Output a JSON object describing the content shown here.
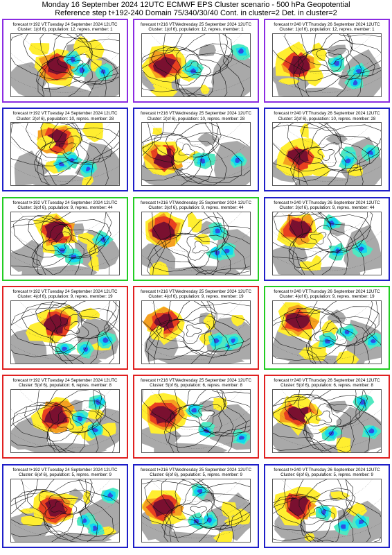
{
  "header": {
    "line1": "Monday 16 September 2024 12UTC ECMWF EPS Cluster scenario - 500 hPa Geopotential",
    "line2": "Reference step t+192-240 Domain 75/340/30/40 Cont. in cluster=2 Det. in cluster=2"
  },
  "colors": {
    "violet": "#8a2be2",
    "blue": "#1e1ec8",
    "green": "#22cc22",
    "red": "#e02020",
    "land": "#a9a9a9",
    "sea": "#ffffff",
    "anomaly_pos_strong": "#7a1030",
    "anomaly_pos_mid": "#e84020",
    "anomaly_pos_weak": "#f5a020",
    "anomaly_pos_faint": "#ffee30",
    "anomaly_neg_weak": "#50e8c0",
    "anomaly_neg_mid": "#10d8f0",
    "anomaly_neg_strong": "#3050e0"
  },
  "clusters": [
    {
      "id": 1,
      "panels": [
        {
          "border": "violet",
          "line1": "forecast t+192 VT:Tuesday 24 September 2024 12UTC",
          "line2": "Cluster: 1(of 6), population: 12, repres. member: 1"
        },
        {
          "border": "violet",
          "line1": "forecast t+216 VT:Wednesday 25 September 2024 12UTC",
          "line2": "Cluster: 1(of 6), population: 12, repres. member: 1"
        },
        {
          "border": "violet",
          "line1": "forecast t+240 VT:Thursday 26 September 2024 12UTC",
          "line2": "Cluster: 1(of 6), population: 12, repres. member: 1"
        }
      ]
    },
    {
      "id": 2,
      "panels": [
        {
          "border": "blue",
          "line1": "forecast t+192 VT:Tuesday 24 September 2024 12UTC",
          "line2": "Cluster: 2(of 6), population: 10, repres. member: 28"
        },
        {
          "border": "blue",
          "line1": "forecast t+216 VT:Wednesday 25 September 2024 12UTC",
          "line2": "Cluster: 2(of 6), population: 10, repres. member: 28"
        },
        {
          "border": "blue",
          "line1": "forecast t+240 VT:Thursday 26 September 2024 12UTC",
          "line2": "Cluster: 2(of 6), population: 10, repres. member: 28"
        }
      ]
    },
    {
      "id": 3,
      "panels": [
        {
          "border": "green",
          "line1": "forecast t+192 VT:Tuesday 24 September 2024 12UTC",
          "line2": "Cluster: 3(of 6), population: 9, repres. member: 44"
        },
        {
          "border": "green",
          "line1": "forecast t+216 VT:Wednesday 25 September 2024 12UTC",
          "line2": "Cluster: 3(of 6), population: 9, repres. member: 44"
        },
        {
          "border": "blue",
          "line1": "forecast t+240 VT:Thursday 26 September 2024 12UTC",
          "line2": "Cluster: 3(of 6), population: 9, repres. member: 44"
        }
      ]
    },
    {
      "id": 4,
      "panels": [
        {
          "border": "red",
          "line1": "forecast t+192 VT:Tuesday 24 September 2024 12UTC",
          "line2": "Cluster: 4(of 6), population: 9, repres. member: 19"
        },
        {
          "border": "red",
          "line1": "forecast t+216 VT:Wednesday 25 September 2024 12UTC",
          "line2": "Cluster: 4(of 6), population: 9, repres. member: 19"
        },
        {
          "border": "green",
          "line1": "forecast t+240 VT:Thursday 26 September 2024 12UTC",
          "line2": "Cluster: 4(of 6), population: 9, repres. member: 19"
        }
      ]
    },
    {
      "id": 5,
      "panels": [
        {
          "border": "red",
          "line1": "forecast t+192 VT:Tuesday 24 September 2024 12UTC",
          "line2": "Cluster: 5(of 6), population: 6, repres. member: 8"
        },
        {
          "border": "red",
          "line1": "forecast t+216 VT:Wednesday 25 September 2024 12UTC",
          "line2": "Cluster: 5(of 6), population: 6, repres. member: 8"
        },
        {
          "border": "red",
          "line1": "forecast t+240 VT:Thursday 26 September 2024 12UTC",
          "line2": "Cluster: 5(of 6), population: 6, repres. member: 8"
        }
      ]
    },
    {
      "id": 6,
      "panels": [
        {
          "border": "blue",
          "line1": "forecast t+192 VT:Tuesday 24 September 2024 12UTC",
          "line2": "Cluster: 6(of 6), population: 5, repres. member: 9"
        },
        {
          "border": "blue",
          "line1": "forecast t+216 VT:Wednesday 25 September 2024 12UTC",
          "line2": "Cluster: 6(of 6), population: 5, repres. member: 9"
        },
        {
          "border": "blue",
          "line1": "forecast t+240 VT:Thursday 26 September 2024 12UTC",
          "line2": "Cluster: 6(of 6), population: 5, repres. member: 9"
        }
      ]
    }
  ]
}
